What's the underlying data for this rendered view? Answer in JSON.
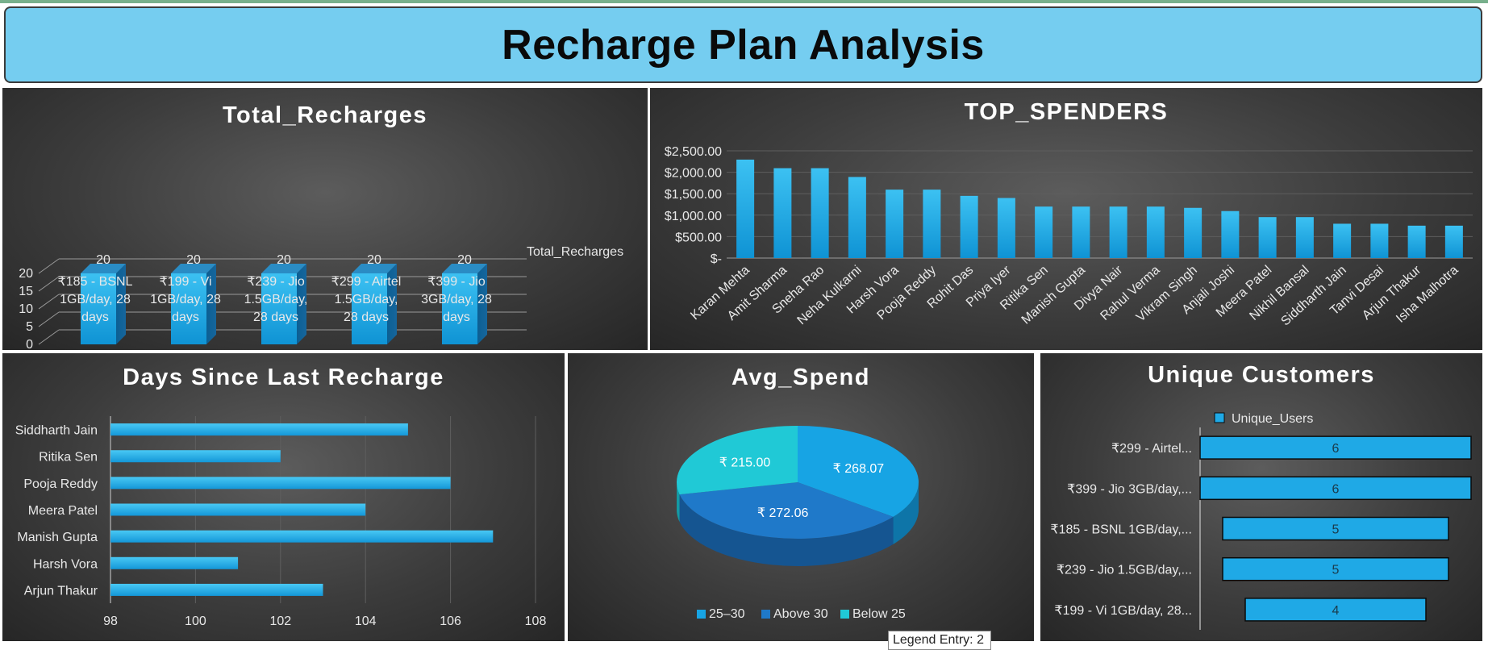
{
  "page_title": "Recharge Plan Analysis",
  "tooltip": "Legend Entry: 2",
  "colors": {
    "accent": "#1fa9e6",
    "banner": "#75cdf0",
    "pie": [
      "#17a4e4",
      "#1f79c9",
      "#20c9d6"
    ]
  },
  "chart_data": [
    {
      "id": "total_recharges",
      "type": "bar",
      "title": "Total_Recharges",
      "categories": [
        "₹185 - BSNL 1GB/day, 28 days",
        "₹199 - Vi 1GB/day, 28 days",
        "₹239 - Jio 1.5GB/day, 28 days",
        "₹299 - Airtel 1.5GB/day, 28 days",
        "₹399 - Jio 3GB/day, 28 days"
      ],
      "category_lines": [
        [
          "₹185 - BSNL",
          "1GB/day, 28",
          "days"
        ],
        [
          "₹199 - Vi",
          "1GB/day, 28",
          "days"
        ],
        [
          "₹239 - Jio",
          "1.5GB/day,",
          "28 days"
        ],
        [
          "₹299 - Airtel",
          "1.5GB/day,",
          "28 days"
        ],
        [
          "₹399 - Jio",
          "3GB/day, 28",
          "days"
        ]
      ],
      "series": [
        {
          "name": "Total_Recharges",
          "values": [
            20,
            20,
            20,
            20,
            20
          ]
        }
      ],
      "yticks": [
        "0",
        "5",
        "10",
        "15",
        "20"
      ],
      "ylim": [
        0,
        20
      ],
      "three_d": true
    },
    {
      "id": "top_spenders",
      "type": "bar",
      "title": "TOP_SPENDERS",
      "categories": [
        "Karan Mehta",
        "Amit Sharma",
        "Sneha Rao",
        "Neha Kulkarni",
        "Harsh Vora",
        "Pooja Reddy",
        "Rohit Das",
        "Priya Iyer",
        "Ritika Sen",
        "Manish Gupta",
        "Divya Nair",
        "Rahul Verma",
        "Vikram Singh",
        "Anjali Joshi",
        "Meera Patel",
        "Nikhil Bansal",
        "Siddharth Jain",
        "Tanvi Desai",
        "Arjun Thakur",
        "Isha Malhotra"
      ],
      "values": [
        2295,
        2095,
        2095,
        1890,
        1595,
        1595,
        1450,
        1400,
        1200,
        1200,
        1200,
        1200,
        1170,
        1095,
        955,
        955,
        800,
        800,
        755,
        755
      ],
      "yticks": [
        "$-",
        "$500.00",
        "$1,000.00",
        "$1,500.00",
        "$2,000.00",
        "$2,500.00"
      ],
      "ylim": [
        0,
        2500
      ]
    },
    {
      "id": "days_since_last_recharge",
      "type": "bar",
      "orientation": "horizontal",
      "title": "Days Since Last Recharge",
      "categories": [
        "Siddharth Jain",
        "Ritika Sen",
        "Pooja Reddy",
        "Meera Patel",
        "Manish Gupta",
        "Harsh Vora",
        "Arjun Thakur"
      ],
      "values": [
        105,
        102,
        106,
        104,
        107,
        101,
        103
      ],
      "xticks": [
        "98",
        "100",
        "102",
        "104",
        "106",
        "108"
      ],
      "xlim": [
        98,
        108
      ]
    },
    {
      "id": "avg_spend",
      "type": "pie",
      "title": "Avg_Spend",
      "slices": [
        {
          "name": "25–30",
          "value": 268.07,
          "label": "₹ 268.07"
        },
        {
          "name": "Above 30",
          "value": 272.06,
          "label": "₹ 272.06"
        },
        {
          "name": "Below 25",
          "value": 215.0,
          "label": "₹ 215.00"
        }
      ],
      "legend_position": "bottom"
    },
    {
      "id": "unique_customers",
      "type": "bar",
      "orientation": "horizontal",
      "style": "funnel",
      "title": "Unique Customers",
      "legend": "Unique_Users",
      "categories": [
        "₹299 - Airtel...",
        "₹399 - Jio 3GB/day,...",
        "₹185 - BSNL 1GB/day,...",
        "₹239 - Jio 1.5GB/day,...",
        "₹199 - Vi 1GB/day, 28..."
      ],
      "values": [
        6,
        6,
        5,
        5,
        4
      ]
    }
  ]
}
